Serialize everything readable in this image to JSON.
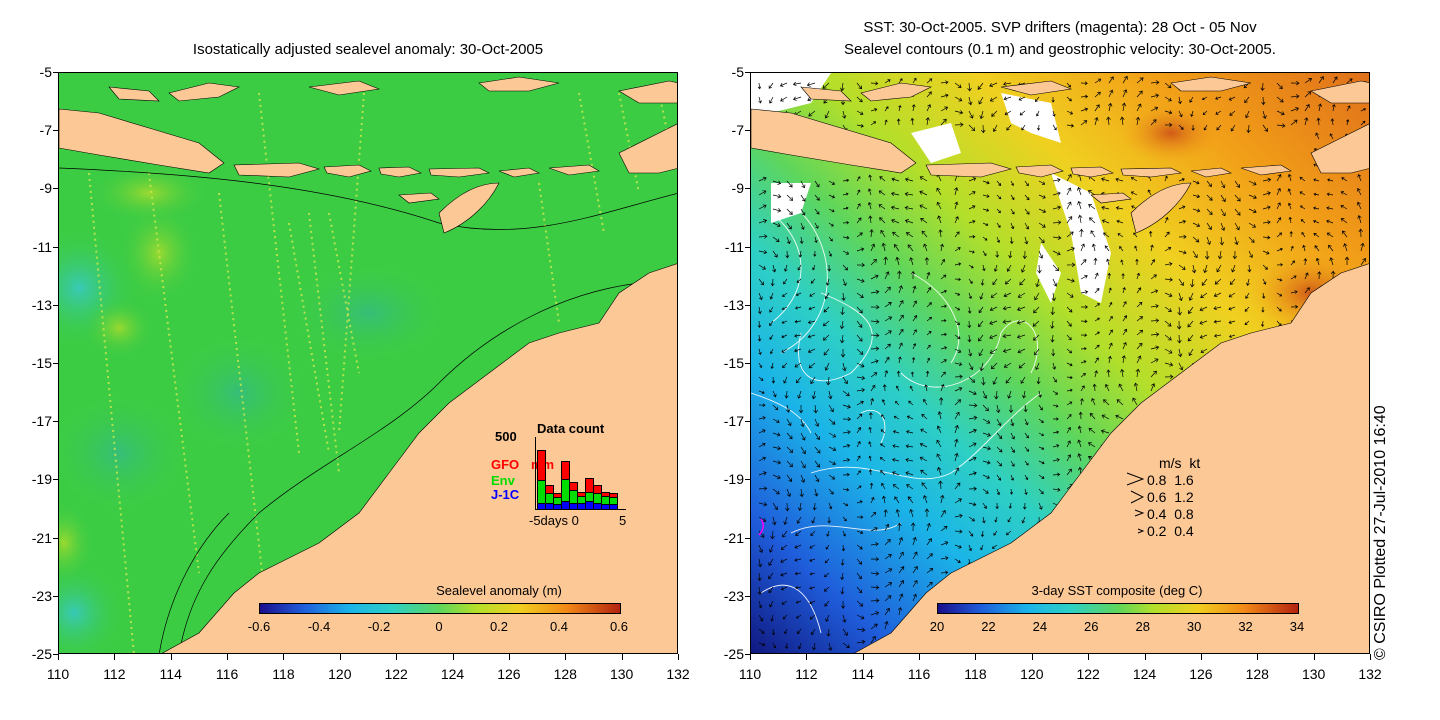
{
  "left_panel": {
    "title": "Isostatically adjusted sealevel anomaly: 30-Oct-2005",
    "colorbar": {
      "title": "Sealevel anomaly (m)",
      "ticks": [
        "-0.6",
        "-0.4",
        "-0.2",
        "0",
        "0.2",
        "0.4",
        "0.6"
      ]
    },
    "histogram": {
      "title": "Data count",
      "ymax_label": "500",
      "legend": [
        {
          "name": "GFO",
          "color": "#ff0000"
        },
        {
          "name": "Env",
          "color": "#00dd00"
        },
        {
          "name": "J-1C",
          "color": "#0000ff"
        }
      ],
      "extra_label": "mm",
      "xlabel": "-5days 0",
      "xlabel_end": "5",
      "bars": [
        {
          "GFO": 0.45,
          "Env": 0.35,
          "J1C": 0.1
        },
        {
          "GFO": 0.1,
          "Env": 0.15,
          "J1C": 0.1
        },
        {
          "GFO": 0.05,
          "Env": 0.1,
          "J1C": 0.08
        },
        {
          "GFO": 0.25,
          "Env": 0.35,
          "J1C": 0.12
        },
        {
          "GFO": 0.1,
          "Env": 0.2,
          "J1C": 0.1
        },
        {
          "GFO": 0.05,
          "Env": 0.1,
          "J1C": 0.1
        },
        {
          "GFO": 0.2,
          "Env": 0.15,
          "J1C": 0.12
        },
        {
          "GFO": 0.1,
          "Env": 0.15,
          "J1C": 0.1
        },
        {
          "GFO": 0.05,
          "Env": 0.12,
          "J1C": 0.08
        },
        {
          "GFO": 0.05,
          "Env": 0.1,
          "J1C": 0.08
        }
      ]
    }
  },
  "right_panel": {
    "title_line1": "SST: 30-Oct-2005. SVP drifters (magenta): 28 Oct - 05 Nov",
    "title_line2": "Sealevel contours (0.1 m) and geostrophic velocity: 30-Oct-2005.",
    "colorbar": {
      "title": "3-day SST composite (deg C)",
      "ticks": [
        "20",
        "22",
        "24",
        "26",
        "28",
        "30",
        "32",
        "34"
      ]
    },
    "velocity_key": {
      "header": "m/s  kt",
      "rows": [
        "0.8  1.6",
        "0.6  1.2",
        "0.4  0.8",
        "0.2  0.4"
      ]
    }
  },
  "axes": {
    "y_ticks": [
      "-5",
      "-7",
      "-9",
      "-11",
      "-13",
      "-15",
      "-17",
      "-19",
      "-21",
      "-23",
      "-25"
    ],
    "x_ticks": [
      "110",
      "112",
      "114",
      "116",
      "118",
      "120",
      "122",
      "124",
      "126",
      "128",
      "130",
      "132"
    ]
  },
  "credit": "© CSIRO Plotted 27-Jul-2010 16:40",
  "colors": {
    "land": "#fcc896",
    "ocean_sla": "#3ccc44",
    "missing": "#ffffff"
  }
}
